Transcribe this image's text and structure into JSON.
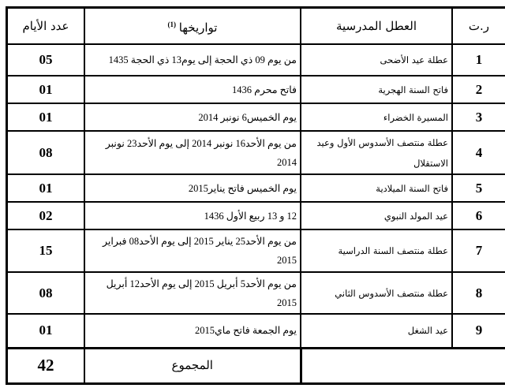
{
  "header": {
    "number": "ر.ت",
    "holiday": "العطل المدرسية",
    "dates": "تواريخها",
    "dates_note": "(1)",
    "days": "عدد الأيام"
  },
  "rows": [
    {
      "number": "1",
      "holiday": "عطلة عيد الأضحى",
      "dates": "من يوم 09 ذي الحجة إلى يوم13 ذي الحجة 1435",
      "days": "05"
    },
    {
      "number": "2",
      "holiday": "فاتح السنة الهجرية",
      "dates": "فاتح محرم 1436",
      "days": "01"
    },
    {
      "number": "3",
      "holiday": "المسيرة الخضراء",
      "dates": "يوم الخميس6 نونبر 2014",
      "days": "01"
    },
    {
      "number": "4",
      "holiday": "عطلة منتصف الأسدوس الأول وعيد الاستقلال",
      "dates": "من يوم الأحد16 نونبر 2014 إلى يوم الأحد23 نونبر 2014",
      "days": "08"
    },
    {
      "number": "5",
      "holiday": "فاتح السنة الميلادية",
      "dates": "يوم الخميس فاتح يناير2015",
      "days": "01"
    },
    {
      "number": "6",
      "holiday": "عيد المولد النبوي",
      "dates": "12 و 13 ربيع الأول 1436",
      "days": "02"
    },
    {
      "number": "7",
      "holiday": "عطلة منتصف السنة الدراسية",
      "dates": "من يوم الأحد25 يناير 2015 إلى يوم الأحد08 فبراير 2015",
      "days": "15"
    },
    {
      "number": "8",
      "holiday": "عطلة منتصف الأسدوس الثاني",
      "dates": "من يوم الأحد5 أبريل 2015 إلى يوم الأحد12 أبريل 2015",
      "days": "08"
    },
    {
      "number": "9",
      "holiday": "عيد الشغل",
      "dates": "يوم الجمعة فاتح ماي2015",
      "days": "01"
    }
  ],
  "total": {
    "label": "المجموع",
    "days": "42"
  }
}
